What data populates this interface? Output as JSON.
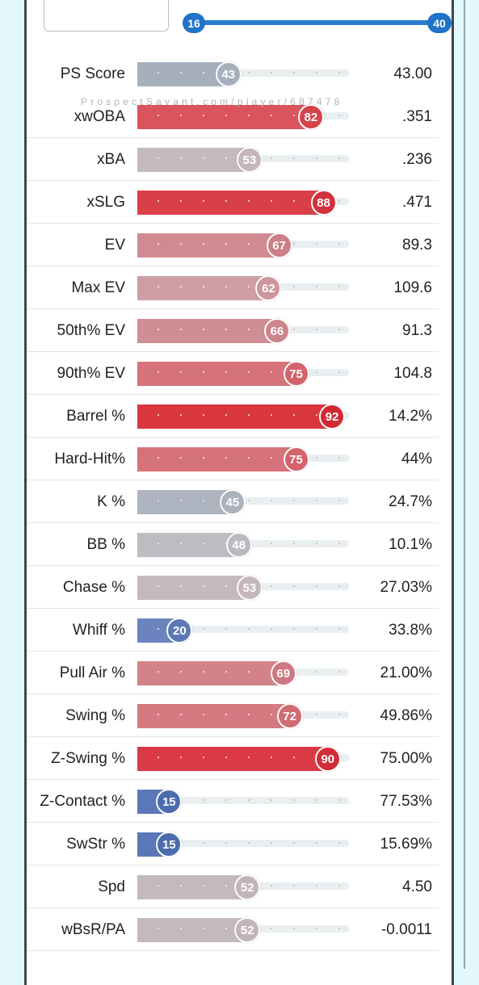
{
  "range_slider": {
    "min_label": "16",
    "max_label": "40"
  },
  "watermark": "ProspectSavant.com/player/687478",
  "metrics": [
    {
      "label": "PS Score",
      "percentile": 43,
      "value": "43.00",
      "bar_color": "#a6b0bd",
      "knob_color": "#a6b0bd"
    },
    {
      "label": "xwOBA",
      "percentile": 82,
      "value": ".351",
      "bar_color": "#d9545c",
      "knob_color": "#d5434b"
    },
    {
      "label": "xBA",
      "percentile": 53,
      "value": ".236",
      "bar_color": "#c6b9bc",
      "knob_color": "#c7b6b9"
    },
    {
      "label": "xSLG",
      "percentile": 88,
      "value": ".471",
      "bar_color": "#d93f48",
      "knob_color": "#d2323c"
    },
    {
      "label": "EV",
      "percentile": 67,
      "value": "89.3",
      "bar_color": "#cf8b91",
      "knob_color": "#cd7f86"
    },
    {
      "label": "Max EV",
      "percentile": 62,
      "value": "109.6",
      "bar_color": "#cf9ea3",
      "knob_color": "#cd969b"
    },
    {
      "label": "50th% EV",
      "percentile": 66,
      "value": "91.3",
      "bar_color": "#cf8e94",
      "knob_color": "#cd848a"
    },
    {
      "label": "90th% EV",
      "percentile": 75,
      "value": "104.8",
      "bar_color": "#d6737a",
      "knob_color": "#d3636b"
    },
    {
      "label": "Barrel %",
      "percentile": 92,
      "value": "14.2%",
      "bar_color": "#da3640",
      "knob_color": "#d12933"
    },
    {
      "label": "Hard-Hit%",
      "percentile": 75,
      "value": "44%",
      "bar_color": "#d6737a",
      "knob_color": "#d3636b"
    },
    {
      "label": "K %",
      "percentile": 45,
      "value": "24.7%",
      "bar_color": "#adb3bf",
      "knob_color": "#abb1bd"
    },
    {
      "label": "BB %",
      "percentile": 48,
      "value": "10.1%",
      "bar_color": "#bcbcc2",
      "knob_color": "#bab9bf"
    },
    {
      "label": "Chase %",
      "percentile": 53,
      "value": "27.03%",
      "bar_color": "#c6b9bc",
      "knob_color": "#c7b6b9"
    },
    {
      "label": "Whiff %",
      "percentile": 20,
      "value": "33.8%",
      "bar_color": "#6b84bd",
      "knob_color": "#5d78b5"
    },
    {
      "label": "Pull Air %",
      "percentile": 69,
      "value": "21.00%",
      "bar_color": "#d38289",
      "knob_color": "#cf7780"
    },
    {
      "label": "Swing %",
      "percentile": 72,
      "value": "49.86%",
      "bar_color": "#d57a81",
      "knob_color": "#d16b73"
    },
    {
      "label": "Z-Swing %",
      "percentile": 90,
      "value": "75.00%",
      "bar_color": "#da3a44",
      "knob_color": "#d12d37"
    },
    {
      "label": "Z-Contact %",
      "percentile": 15,
      "value": "77.53%",
      "bar_color": "#5a78b8",
      "knob_color": "#4c6cae"
    },
    {
      "label": "SwStr %",
      "percentile": 15,
      "value": "15.69%",
      "bar_color": "#5a78b8",
      "knob_color": "#4c6cae"
    },
    {
      "label": "Spd",
      "percentile": 52,
      "value": "4.50",
      "bar_color": "#c4b9bc",
      "knob_color": "#c2b5b8"
    },
    {
      "label": "wBsR/PA",
      "percentile": 52,
      "value": "-0.0011",
      "bar_color": "#c4b9bc",
      "knob_color": "#c2b5b8"
    }
  ]
}
